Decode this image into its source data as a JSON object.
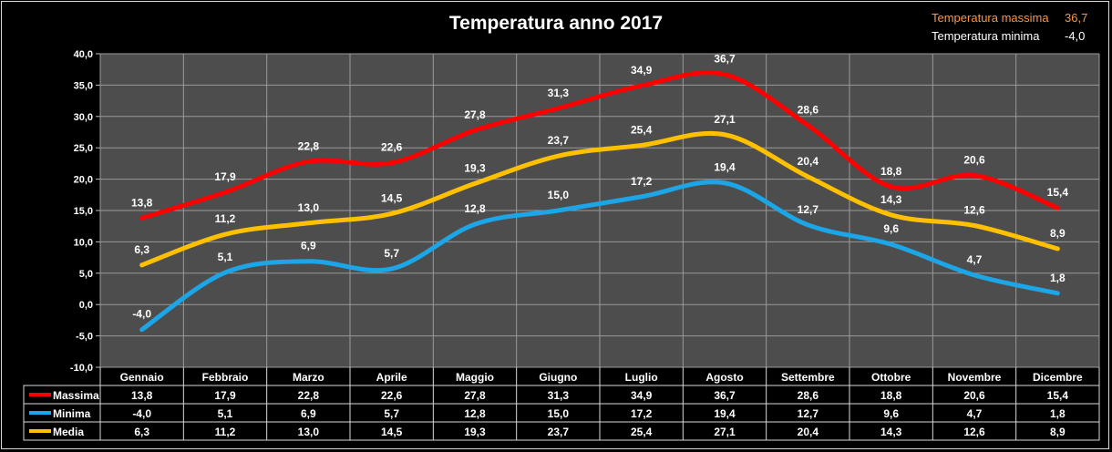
{
  "title": "Temperatura anno 2017",
  "summary": {
    "max_label": "Temperatura massima",
    "max_value": "36,7",
    "min_label": "Temperatura minima",
    "min_value": "-4,0"
  },
  "chart_data": {
    "type": "line",
    "title": "Temperatura anno 2017",
    "categories": [
      "Gennaio",
      "Febbraio",
      "Marzo",
      "Aprile",
      "Maggio",
      "Giugno",
      "Luglio",
      "Agosto",
      "Settembre",
      "Ottobre",
      "Novembre",
      "Dicembre"
    ],
    "ylim": [
      -10,
      40
    ],
    "yticks": [
      "-10,0",
      "-5,0",
      "0,0",
      "5,0",
      "10,0",
      "15,0",
      "20,0",
      "25,0",
      "30,0",
      "35,0",
      "40,0"
    ],
    "grid": true,
    "legend": "data-table",
    "series": [
      {
        "name": "Massima",
        "color": "#ff0000",
        "values": [
          13.8,
          17.9,
          22.8,
          22.6,
          27.8,
          31.3,
          34.9,
          36.7,
          28.6,
          18.8,
          20.6,
          15.4
        ],
        "labels": [
          "13,8",
          "17,9",
          "22,8",
          "22,6",
          "27,8",
          "31,3",
          "34,9",
          "36,7",
          "28,6",
          "18,8",
          "20,6",
          "15,4"
        ]
      },
      {
        "name": "Minima",
        "color": "#1ca6e8",
        "values": [
          -4.0,
          5.1,
          6.9,
          5.7,
          12.8,
          15.0,
          17.2,
          19.4,
          12.7,
          9.6,
          4.7,
          1.8
        ],
        "labels": [
          "-4,0",
          "5,1",
          "6,9",
          "5,7",
          "12,8",
          "15,0",
          "17,2",
          "19,4",
          "12,7",
          "9,6",
          "4,7",
          "1,8"
        ]
      },
      {
        "name": "Media",
        "color": "#ffc000",
        "values": [
          6.3,
          11.2,
          13.0,
          14.5,
          19.3,
          23.7,
          25.4,
          27.1,
          20.4,
          14.3,
          12.6,
          8.9
        ],
        "labels": [
          "6,3",
          "11,2",
          "13,0",
          "14,5",
          "19,3",
          "23,7",
          "25,4",
          "27,1",
          "20,4",
          "14,3",
          "12,6",
          "8,9"
        ]
      }
    ]
  }
}
